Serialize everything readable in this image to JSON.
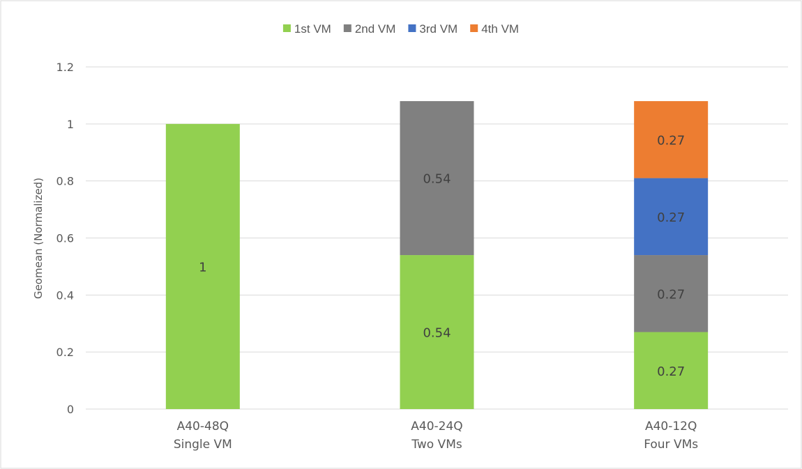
{
  "chart_data": {
    "type": "bar",
    "stacked": true,
    "title": "",
    "xlabel": "",
    "ylabel": "Geomean (Normalized)",
    "ylim": [
      0,
      1.2
    ],
    "yticks": [
      "0",
      "0.2",
      "0.4",
      "0.6",
      "0.8",
      "1",
      "1.2"
    ],
    "ytick_values": [
      0,
      0.2,
      0.4,
      0.6,
      0.8,
      1.0,
      1.2
    ],
    "grid": true,
    "legend_position": "top",
    "categories": [
      [
        "A40-48Q",
        "Single VM"
      ],
      [
        "A40-24Q",
        "Two VMs"
      ],
      [
        "A40-12Q",
        "Four VMs"
      ]
    ],
    "series": [
      {
        "name": "1st VM",
        "color": "#92d050",
        "values": [
          1,
          0.54,
          0.27
        ],
        "labels": [
          "1",
          "0.54",
          "0.27"
        ]
      },
      {
        "name": "2nd VM",
        "color": "#808080",
        "values": [
          0,
          0.54,
          0.27
        ],
        "labels": [
          "",
          "0.54",
          "0.27"
        ]
      },
      {
        "name": "3rd VM",
        "color": "#4472c4",
        "values": [
          0,
          0,
          0.27
        ],
        "labels": [
          "",
          "",
          "0.27"
        ]
      },
      {
        "name": "4th VM",
        "color": "#ed7d31",
        "values": [
          0,
          0,
          0.27
        ],
        "labels": [
          "",
          "",
          "0.27"
        ]
      }
    ]
  }
}
